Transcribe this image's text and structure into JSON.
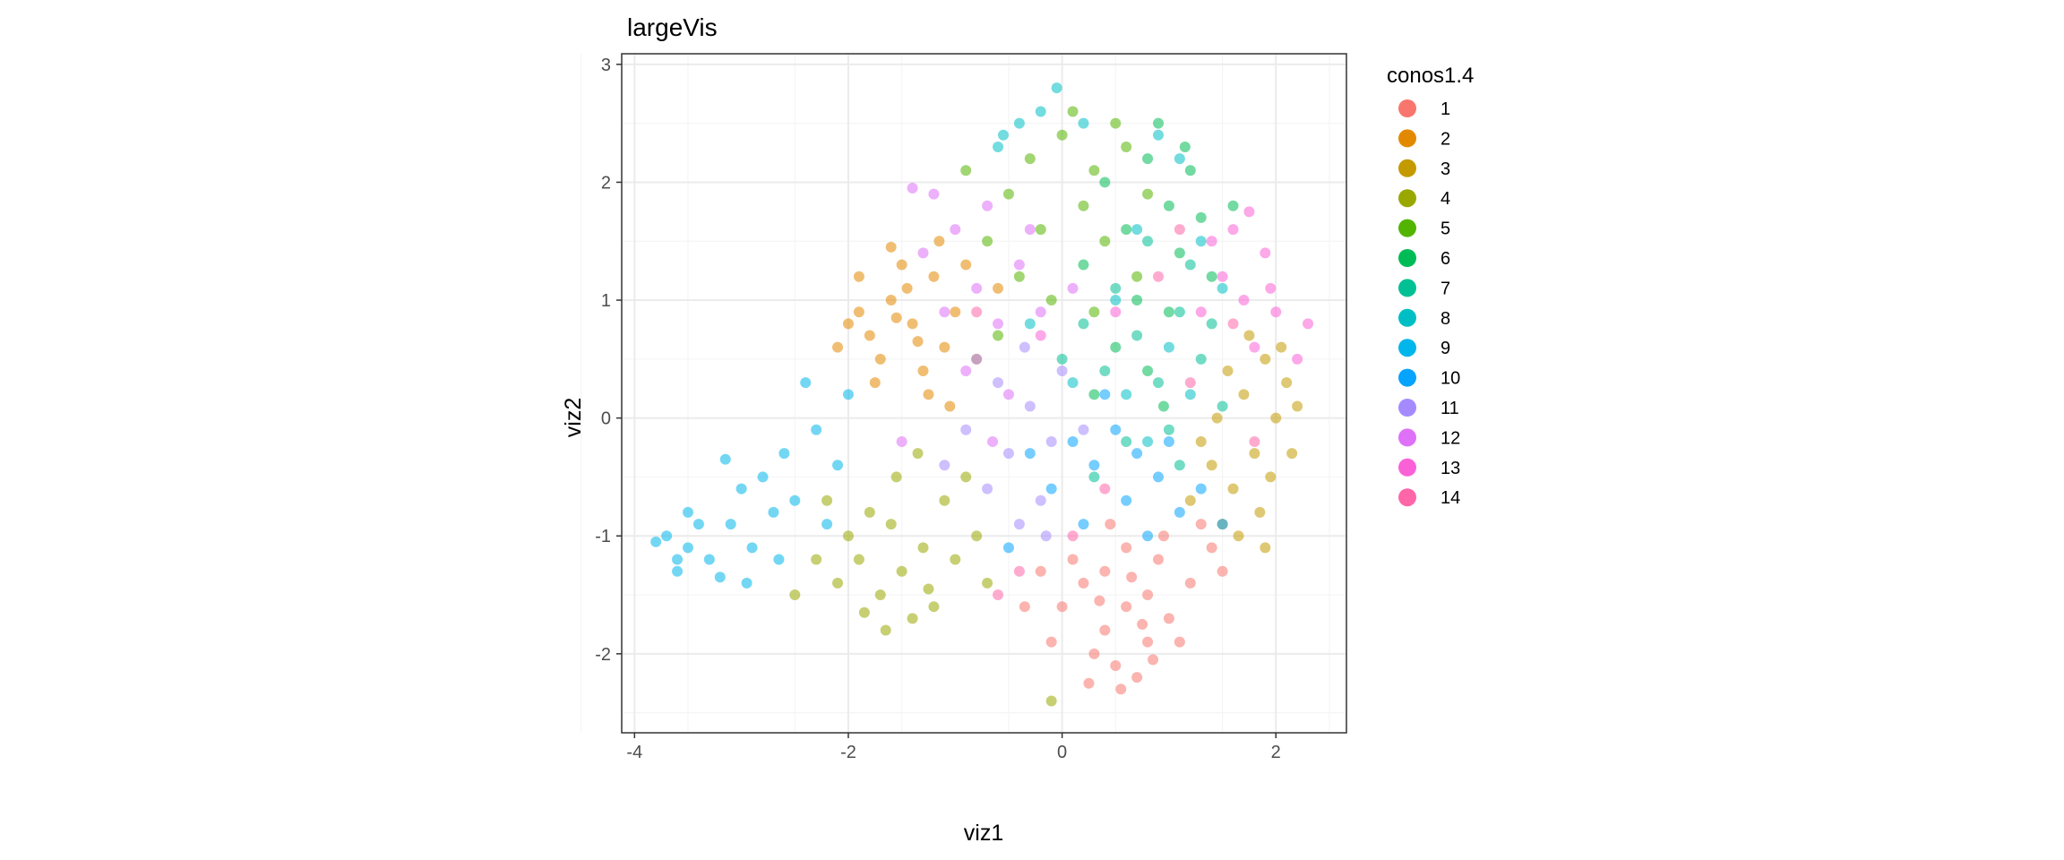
{
  "chart_data": {
    "type": "scatter",
    "title": "largeVis",
    "xlabel": "viz1",
    "ylabel": "viz2",
    "xlim": [
      -4.12,
      2.66
    ],
    "ylim": [
      -2.67,
      3.09
    ],
    "xticks": [
      "-4",
      "-2",
      "0",
      "2"
    ],
    "yticks": [
      "-2",
      "-1",
      "0",
      "1",
      "2",
      "3"
    ],
    "grid": true,
    "legend": {
      "title": "conos1.4",
      "placement": "right"
    },
    "series": [
      {
        "name": "1",
        "color": "#F8766D",
        "points": [
          [
            0.6,
            -1.6
          ],
          [
            0.4,
            -1.8
          ],
          [
            0.8,
            -1.5
          ],
          [
            0.2,
            -1.4
          ],
          [
            1.0,
            -1.7
          ],
          [
            0.5,
            -2.1
          ],
          [
            0.7,
            -2.2
          ],
          [
            0.3,
            -2.0
          ],
          [
            0.9,
            -1.2
          ],
          [
            1.2,
            -1.4
          ],
          [
            0.0,
            -1.6
          ],
          [
            -0.1,
            -1.9
          ],
          [
            0.6,
            -1.1
          ],
          [
            1.4,
            -1.1
          ],
          [
            0.4,
            -1.3
          ],
          [
            0.8,
            -1.9
          ],
          [
            0.1,
            -1.2
          ],
          [
            1.1,
            -1.9
          ],
          [
            0.55,
            -2.3
          ],
          [
            0.35,
            -1.55
          ],
          [
            0.75,
            -1.75
          ],
          [
            -0.2,
            -1.3
          ],
          [
            1.3,
            -0.9
          ],
          [
            0.95,
            -1.0
          ],
          [
            0.25,
            -2.25
          ],
          [
            0.65,
            -1.35
          ],
          [
            1.5,
            -1.3
          ],
          [
            0.45,
            -0.9
          ],
          [
            -0.35,
            -1.6
          ],
          [
            0.85,
            -2.05
          ]
        ]
      },
      {
        "name": "2",
        "color": "#E38900",
        "points": [
          [
            -1.4,
            0.8
          ],
          [
            -1.6,
            1.0
          ],
          [
            -1.2,
            1.2
          ],
          [
            -1.8,
            0.7
          ],
          [
            -1.3,
            0.4
          ],
          [
            -1.0,
            0.9
          ],
          [
            -1.5,
            1.3
          ],
          [
            -1.9,
            0.9
          ],
          [
            -1.1,
            0.6
          ],
          [
            -1.7,
            0.5
          ],
          [
            -1.45,
            1.1
          ],
          [
            -1.25,
            0.2
          ],
          [
            -0.9,
            1.3
          ],
          [
            -2.0,
            0.8
          ],
          [
            -1.6,
            1.45
          ],
          [
            -1.35,
            0.65
          ],
          [
            -1.05,
            0.1
          ],
          [
            -1.75,
            0.3
          ],
          [
            -0.8,
            0.5
          ],
          [
            -1.55,
            0.85
          ],
          [
            -2.1,
            0.6
          ],
          [
            -1.15,
            1.5
          ],
          [
            -0.6,
            1.1
          ],
          [
            -1.9,
            1.2
          ]
        ]
      },
      {
        "name": "3",
        "color": "#C49A00",
        "points": [
          [
            1.7,
            0.2
          ],
          [
            1.8,
            -0.3
          ],
          [
            1.9,
            0.5
          ],
          [
            1.6,
            -0.6
          ],
          [
            2.0,
            0.0
          ],
          [
            1.5,
            -0.9
          ],
          [
            2.1,
            0.3
          ],
          [
            1.75,
            0.7
          ],
          [
            1.4,
            -0.4
          ],
          [
            1.85,
            -0.8
          ],
          [
            2.2,
            0.1
          ],
          [
            1.65,
            -1.0
          ],
          [
            1.95,
            -0.5
          ],
          [
            1.3,
            -0.2
          ],
          [
            2.05,
            0.6
          ],
          [
            1.55,
            0.4
          ],
          [
            1.2,
            -0.7
          ],
          [
            1.9,
            -1.1
          ],
          [
            2.15,
            -0.3
          ],
          [
            1.45,
            0.0
          ]
        ]
      },
      {
        "name": "4",
        "color": "#99A800",
        "points": [
          [
            -1.5,
            -1.3
          ],
          [
            -1.7,
            -1.5
          ],
          [
            -1.3,
            -1.1
          ],
          [
            -1.9,
            -1.2
          ],
          [
            -1.2,
            -1.6
          ],
          [
            -1.6,
            -0.9
          ],
          [
            -2.1,
            -1.4
          ],
          [
            -1.0,
            -1.2
          ],
          [
            -1.4,
            -1.7
          ],
          [
            -1.8,
            -0.8
          ],
          [
            -2.3,
            -1.2
          ],
          [
            -1.1,
            -0.7
          ],
          [
            -1.55,
            -0.5
          ],
          [
            -2.5,
            -1.5
          ],
          [
            -0.8,
            -1.0
          ],
          [
            -1.25,
            -1.45
          ],
          [
            -1.85,
            -1.65
          ],
          [
            -0.7,
            -1.4
          ],
          [
            -2.0,
            -1.0
          ],
          [
            -1.35,
            -0.3
          ],
          [
            -1.65,
            -1.8
          ],
          [
            -0.9,
            -0.5
          ],
          [
            -0.1,
            -2.4
          ],
          [
            -2.2,
            -0.7
          ]
        ]
      },
      {
        "name": "5",
        "color": "#53B400",
        "points": [
          [
            -0.3,
            2.2
          ],
          [
            0.0,
            2.4
          ],
          [
            0.3,
            2.1
          ],
          [
            -0.5,
            1.9
          ],
          [
            0.5,
            2.5
          ],
          [
            -0.2,
            1.6
          ],
          [
            0.2,
            1.8
          ],
          [
            0.6,
            2.3
          ],
          [
            -0.7,
            1.5
          ],
          [
            -0.9,
            2.1
          ],
          [
            0.1,
            2.6
          ],
          [
            0.4,
            1.5
          ],
          [
            -0.4,
            1.2
          ],
          [
            0.8,
            1.9
          ],
          [
            -0.1,
            1.0
          ],
          [
            0.3,
            0.9
          ],
          [
            -0.6,
            0.7
          ],
          [
            0.7,
            1.2
          ]
        ]
      },
      {
        "name": "6",
        "color": "#00BC56",
        "points": [
          [
            0.8,
            2.2
          ],
          [
            1.0,
            1.8
          ],
          [
            0.6,
            1.6
          ],
          [
            1.2,
            2.1
          ],
          [
            0.9,
            2.5
          ],
          [
            0.4,
            2.0
          ],
          [
            1.1,
            1.4
          ],
          [
            0.7,
            1.0
          ],
          [
            1.3,
            1.7
          ],
          [
            0.5,
            0.6
          ],
          [
            1.0,
            0.9
          ],
          [
            0.2,
            1.3
          ],
          [
            1.4,
            1.2
          ],
          [
            0.8,
            0.4
          ],
          [
            1.15,
            2.3
          ],
          [
            0.3,
            0.2
          ],
          [
            1.6,
            1.8
          ],
          [
            0.95,
            0.1
          ]
        ]
      },
      {
        "name": "7",
        "color": "#00C094",
        "points": [
          [
            0.7,
            0.7
          ],
          [
            0.9,
            0.3
          ],
          [
            1.1,
            0.9
          ],
          [
            0.5,
            1.1
          ],
          [
            1.3,
            0.5
          ],
          [
            0.4,
            0.4
          ],
          [
            1.0,
            -0.1
          ],
          [
            0.6,
            -0.2
          ],
          [
            1.4,
            0.8
          ],
          [
            0.2,
            0.8
          ],
          [
            1.2,
            1.3
          ],
          [
            0.8,
            1.5
          ],
          [
            1.5,
            0.1
          ],
          [
            0.3,
            -0.5
          ],
          [
            0.0,
            0.5
          ],
          [
            1.1,
            -0.4
          ]
        ]
      },
      {
        "name": "8",
        "color": "#00BFC4",
        "points": [
          [
            -0.2,
            2.6
          ],
          [
            -0.05,
            2.8
          ],
          [
            -0.4,
            2.5
          ],
          [
            0.2,
            2.5
          ],
          [
            -0.6,
            2.3
          ],
          [
            0.9,
            2.4
          ],
          [
            1.1,
            2.2
          ],
          [
            0.7,
            1.6
          ],
          [
            1.0,
            0.6
          ],
          [
            0.5,
            1.0
          ],
          [
            1.3,
            1.5
          ],
          [
            1.2,
            0.2
          ],
          [
            0.8,
            -0.2
          ],
          [
            0.1,
            0.3
          ],
          [
            -0.3,
            0.8
          ],
          [
            0.6,
            0.2
          ],
          [
            1.5,
            1.1
          ],
          [
            -0.55,
            2.4
          ]
        ]
      },
      {
        "name": "9",
        "color": "#00B6EB",
        "points": [
          [
            -3.5,
            -1.1
          ],
          [
            -3.7,
            -1.0
          ],
          [
            -3.3,
            -1.2
          ],
          [
            -3.6,
            -1.3
          ],
          [
            -3.1,
            -0.9
          ],
          [
            -2.9,
            -1.1
          ],
          [
            -3.4,
            -0.9
          ],
          [
            -3.8,
            -1.05
          ],
          [
            -3.2,
            -1.35
          ],
          [
            -2.7,
            -0.8
          ],
          [
            -3.0,
            -0.6
          ],
          [
            -2.8,
            -0.5
          ],
          [
            -2.5,
            -0.7
          ],
          [
            -2.6,
            -0.3
          ],
          [
            -2.3,
            -0.1
          ],
          [
            -2.4,
            0.3
          ],
          [
            -2.1,
            -0.4
          ],
          [
            -3.5,
            -0.8
          ],
          [
            -2.95,
            -1.4
          ],
          [
            -2.2,
            -0.9
          ],
          [
            -3.15,
            -0.35
          ],
          [
            -2.65,
            -1.2
          ],
          [
            -2.0,
            0.2
          ],
          [
            -3.6,
            -1.2
          ]
        ]
      },
      {
        "name": "10",
        "color": "#06A4FF",
        "points": [
          [
            0.3,
            -0.4
          ],
          [
            0.6,
            -0.7
          ],
          [
            0.1,
            -0.2
          ],
          [
            0.9,
            -0.5
          ],
          [
            -0.1,
            -0.6
          ],
          [
            0.5,
            -0.1
          ],
          [
            1.1,
            -0.8
          ],
          [
            0.7,
            -0.3
          ],
          [
            0.2,
            -0.9
          ],
          [
            1.3,
            -0.6
          ],
          [
            -0.3,
            -0.3
          ],
          [
            0.8,
            -1.0
          ],
          [
            0.4,
            0.2
          ],
          [
            1.0,
            -0.2
          ],
          [
            -0.5,
            -1.1
          ],
          [
            1.5,
            -0.9
          ]
        ]
      },
      {
        "name": "11",
        "color": "#A58AFF",
        "points": [
          [
            -0.5,
            -0.3
          ],
          [
            -0.3,
            0.1
          ],
          [
            -0.7,
            -0.6
          ],
          [
            -0.1,
            -0.2
          ],
          [
            -0.6,
            0.3
          ],
          [
            -0.2,
            -0.7
          ],
          [
            -0.9,
            -0.1
          ],
          [
            0.0,
            0.4
          ],
          [
            -0.4,
            -0.9
          ],
          [
            -0.8,
            0.5
          ],
          [
            0.2,
            -0.1
          ],
          [
            -1.1,
            -0.4
          ],
          [
            -0.35,
            0.6
          ],
          [
            -0.15,
            -1.0
          ]
        ]
      },
      {
        "name": "12",
        "color": "#DF70F8",
        "points": [
          [
            -0.8,
            1.1
          ],
          [
            -1.0,
            1.6
          ],
          [
            -0.6,
            0.8
          ],
          [
            -1.2,
            1.9
          ],
          [
            -0.4,
            1.3
          ],
          [
            -0.9,
            0.4
          ],
          [
            -0.2,
            0.9
          ],
          [
            -1.3,
            1.4
          ],
          [
            -0.7,
            1.8
          ],
          [
            -0.5,
            0.2
          ],
          [
            -1.1,
            0.9
          ],
          [
            -0.3,
            1.6
          ],
          [
            0.1,
            1.1
          ],
          [
            -1.4,
            1.95
          ],
          [
            -0.65,
            -0.2
          ],
          [
            -1.5,
            -0.2
          ]
        ]
      },
      {
        "name": "13",
        "color": "#FB61D7",
        "points": [
          [
            1.5,
            1.2
          ],
          [
            1.7,
            1.0
          ],
          [
            1.9,
            1.4
          ],
          [
            1.6,
            1.6
          ],
          [
            2.0,
            0.9
          ],
          [
            1.8,
            0.6
          ],
          [
            2.2,
            0.5
          ],
          [
            1.4,
            1.5
          ],
          [
            2.3,
            0.8
          ],
          [
            1.75,
            1.75
          ],
          [
            1.3,
            0.9
          ],
          [
            1.95,
            1.1
          ],
          [
            0.5,
            0.9
          ],
          [
            -0.2,
            0.7
          ]
        ]
      },
      {
        "name": "14",
        "color": "#FF66A8",
        "points": [
          [
            1.6,
            0.8
          ],
          [
            1.2,
            0.3
          ],
          [
            0.4,
            -0.6
          ],
          [
            -0.4,
            -1.3
          ],
          [
            0.9,
            1.2
          ],
          [
            1.8,
            -0.2
          ],
          [
            -0.8,
            0.9
          ],
          [
            0.1,
            -1.0
          ],
          [
            1.1,
            1.6
          ],
          [
            -0.6,
            -1.5
          ]
        ]
      }
    ]
  }
}
